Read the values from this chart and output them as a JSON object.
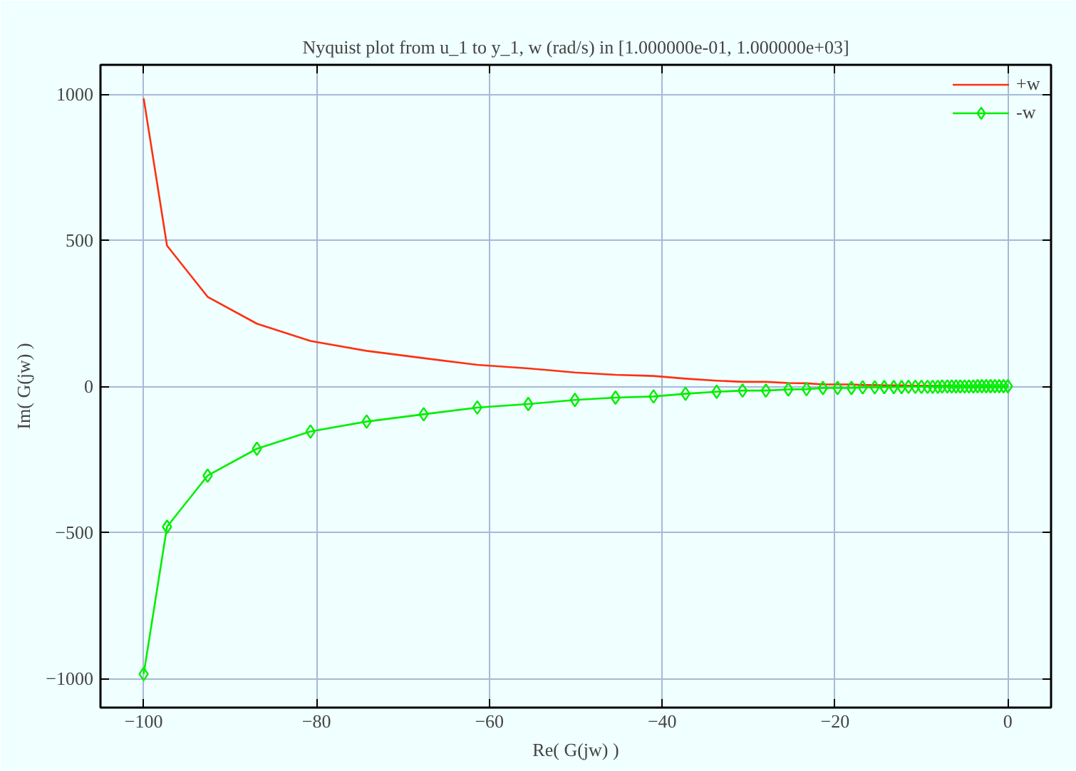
{
  "chart_data": {
    "type": "line",
    "title": "Nyquist plot from u_1 to y_1, w (rad/s) in [1.000000e-01, 1.000000e+03]",
    "xlabel": "Re( G(jw) )",
    "ylabel": "Im( G(jw) )",
    "x": [
      -100,
      -97.3,
      -92.6,
      -86.9,
      -80.7,
      -74.2,
      -67.6,
      -61.4,
      -55.5,
      -50.1,
      -45.4,
      -41.0,
      -37.3,
      -33.7,
      -30.7,
      -28.0,
      -25.4,
      -23.3,
      -21.4,
      -19.7,
      -18.1,
      -16.8,
      -15.4,
      -14.3,
      -13.2,
      -12.3,
      -11.5,
      -10.7,
      -10.0,
      -9.3,
      -8.7,
      -8.1,
      -7.6,
      -7.0,
      -6.5,
      -6.0,
      -5.5,
      -5.0,
      -4.5,
      -4.0,
      -3.5,
      -3.0,
      -2.5,
      -2.0,
      -1.5,
      -1.0,
      -0.5,
      0
    ],
    "series": [
      {
        "name": "+w",
        "color": "#ff3010",
        "marker": "none",
        "values": [
          985,
          481,
          306,
          214,
          155,
          121,
          96,
          73,
          61,
          47,
          39,
          35,
          26,
          19,
          15,
          15,
          11,
          10,
          6,
          6,
          6,
          4,
          4,
          3,
          3,
          3,
          2,
          2,
          2,
          2,
          2,
          2,
          1,
          1,
          1,
          null,
          null,
          null,
          null,
          null,
          null,
          null,
          null,
          null,
          null,
          null,
          null,
          null
        ]
      },
      {
        "name": "-w",
        "color": "#00ee00",
        "marker": "diamond",
        "values": [
          -985,
          -481,
          -306,
          -214,
          -155,
          -121,
          -96,
          -73,
          -61,
          -47,
          -39,
          -35,
          -26,
          -19,
          -15,
          -15,
          -11,
          -10,
          -6,
          -6,
          -6,
          -4,
          -4,
          -3,
          -3,
          -3,
          -2,
          -2,
          -2,
          -2,
          -2,
          -2,
          -1,
          -1,
          -1,
          -1,
          -1,
          -1,
          -1,
          -1,
          0,
          0,
          0,
          0,
          0,
          0,
          0,
          0
        ]
      }
    ],
    "xlim": [
      -105,
      5
    ],
    "ylim": [
      -1100,
      1100
    ],
    "xticks": [
      -100,
      -80,
      -60,
      -40,
      -20,
      0
    ],
    "yticks": [
      -1000,
      -500,
      0,
      500,
      1000
    ],
    "grid": true,
    "legend": "top right"
  }
}
